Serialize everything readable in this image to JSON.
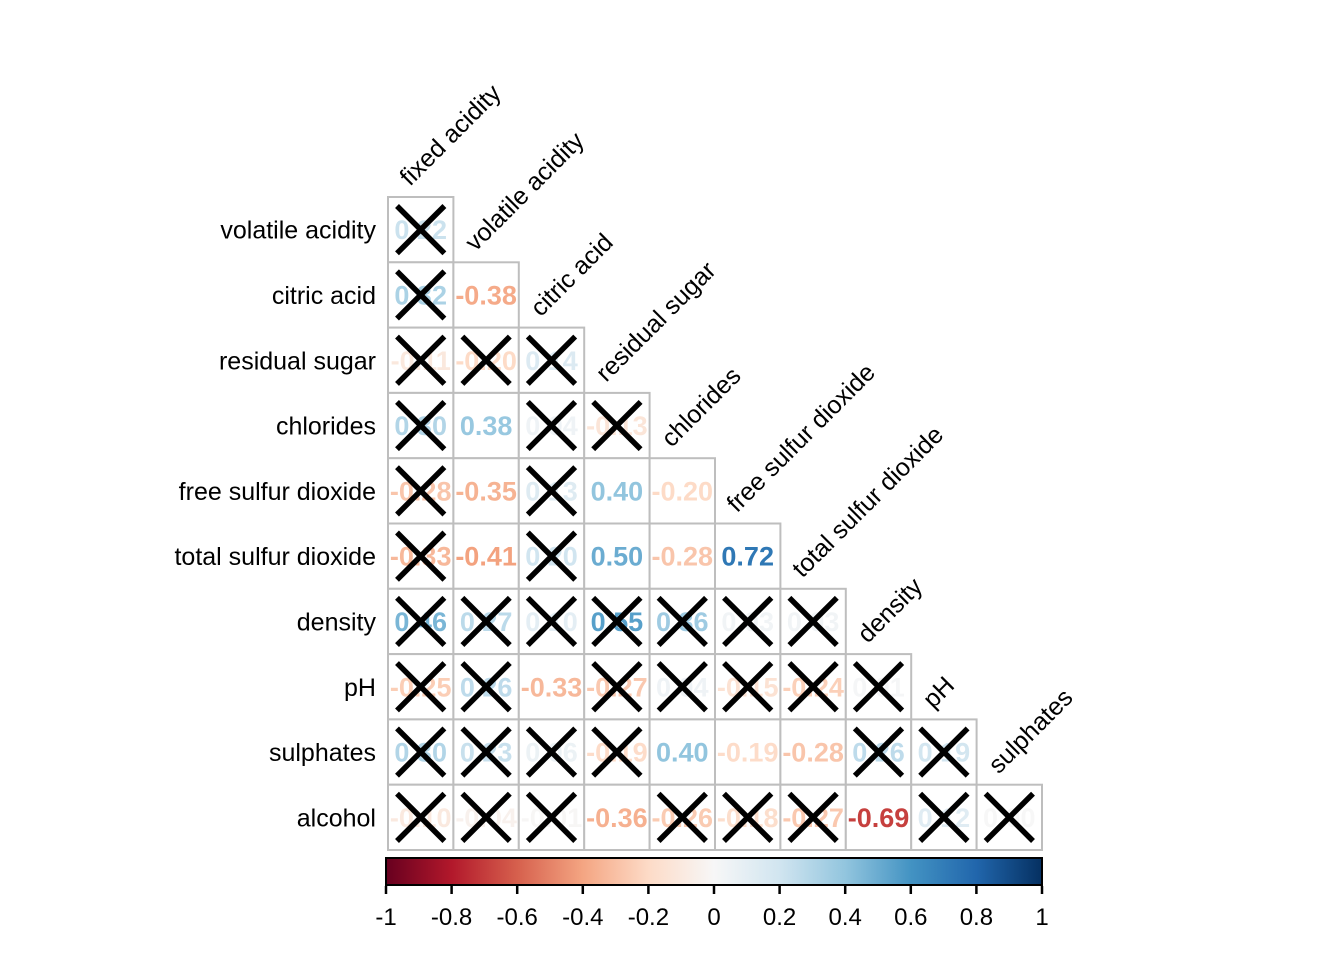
{
  "chart_data": {
    "type": "heatmap",
    "subtype": "correlation_matrix_lower_triangle",
    "title": "",
    "variables": [
      "fixed acidity",
      "volatile acidity",
      "citric acid",
      "residual sugar",
      "chlorides",
      "free sulfur dioxide",
      "total sulfur dioxide",
      "density",
      "pH",
      "sulphates",
      "alcohol"
    ],
    "column_labels": [
      "fixed acidity",
      "volatile acidity",
      "citric acid",
      "residual sugar",
      "chlorides",
      "free sulfur dioxide",
      "total sulfur dioxide",
      "density",
      "pH",
      "sulphates"
    ],
    "rows": [
      {
        "label": "volatile acidity",
        "values": [
          0.22
        ],
        "crossed": [
          true
        ]
      },
      {
        "label": "citric acid",
        "values": [
          0.32,
          -0.38
        ],
        "crossed": [
          true,
          false
        ]
      },
      {
        "label": "residual sugar",
        "values": [
          -0.11,
          -0.2,
          0.14
        ],
        "crossed": [
          true,
          true,
          true
        ]
      },
      {
        "label": "chlorides",
        "values": [
          0.3,
          0.38,
          0.04,
          -0.13
        ],
        "crossed": [
          true,
          false,
          true,
          true
        ]
      },
      {
        "label": "free sulfur dioxide",
        "values": [
          -0.28,
          -0.35,
          0.13,
          0.4,
          -0.2
        ],
        "crossed": [
          true,
          false,
          true,
          false,
          false
        ]
      },
      {
        "label": "total sulfur dioxide",
        "values": [
          -0.33,
          -0.41,
          0.2,
          0.5,
          -0.28,
          0.72
        ],
        "crossed": [
          true,
          false,
          true,
          false,
          false,
          false
        ]
      },
      {
        "label": "density",
        "values": [
          0.46,
          0.27,
          0.1,
          0.55,
          0.36,
          0.03,
          0.03
        ],
        "crossed": [
          true,
          true,
          true,
          true,
          true,
          true,
          true
        ]
      },
      {
        "label": "pH",
        "values": [
          -0.25,
          0.26,
          -0.33,
          -0.27,
          0.04,
          -0.15,
          -0.24,
          0.01
        ],
        "crossed": [
          true,
          true,
          false,
          true,
          true,
          true,
          true,
          true
        ]
      },
      {
        "label": "sulphates",
        "values": [
          0.3,
          0.23,
          0.06,
          -0.19,
          0.4,
          -0.19,
          -0.28,
          0.26,
          0.19
        ],
        "crossed": [
          true,
          true,
          true,
          true,
          false,
          false,
          false,
          true,
          true
        ]
      },
      {
        "label": "alcohol",
        "values": [
          -0.1,
          -0.04,
          -0.01,
          -0.36,
          -0.26,
          -0.18,
          -0.27,
          -0.69,
          0.12,
          0.0
        ],
        "crossed": [
          true,
          true,
          true,
          false,
          true,
          true,
          true,
          false,
          true,
          true
        ]
      }
    ],
    "colorbar": {
      "min": -1,
      "max": 1,
      "tick_labels": [
        "-1",
        "-0.8",
        "-0.6",
        "-0.4",
        "-0.2",
        "0",
        "0.2",
        "0.4",
        "0.6",
        "0.8",
        "1"
      ]
    },
    "palette_rdbu": [
      "#67001F",
      "#B2182B",
      "#D6604D",
      "#F4A582",
      "#FDDBC7",
      "#F7F7F7",
      "#D1E5F0",
      "#92C5DE",
      "#4393C3",
      "#2166AC",
      "#053061"
    ],
    "colors": {
      "grid": "#BEBEBE",
      "cross": "#000000",
      "label": "#000000",
      "background": "#FFFFFF"
    },
    "legend_position": "bottom"
  }
}
